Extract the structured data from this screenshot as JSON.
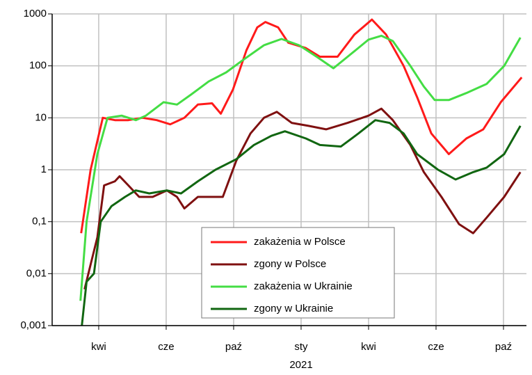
{
  "chart_data": {
    "type": "line",
    "log_y": true,
    "grid": true,
    "legend": "bottom-center",
    "ylim": [
      0.001,
      1000
    ],
    "yticks": [
      {
        "value": 0.001,
        "label": "0,001"
      },
      {
        "value": 0.01,
        "label": "0,01"
      },
      {
        "value": 0.1,
        "label": "0,1"
      },
      1,
      10,
      100,
      1000
    ],
    "xlim": [
      0.31,
      7.34
    ],
    "xticks": [
      {
        "value": 1,
        "label": "kwi"
      },
      {
        "value": 2,
        "label": "cze"
      },
      {
        "value": 3,
        "label": "paź"
      },
      {
        "value": 4,
        "label": "sty"
      },
      {
        "value": 5,
        "label": "kwi"
      },
      {
        "value": 6,
        "label": "cze"
      },
      {
        "value": 7,
        "label": "paź"
      }
    ],
    "x_label": "2021",
    "series": [
      {
        "name": "zakażenia w Polsce",
        "color": "#ff1a1a",
        "x": [
          0.74,
          0.88,
          1.06,
          1.24,
          1.44,
          1.65,
          1.86,
          2.06,
          2.27,
          2.47,
          2.68,
          2.81,
          2.99,
          3.19,
          3.35,
          3.47,
          3.66,
          3.81,
          4.07,
          4.28,
          4.54,
          4.79,
          5.05,
          5.26,
          5.52,
          5.72,
          5.93,
          6.19,
          6.45,
          6.7,
          6.96,
          7.27
        ],
        "values": [
          0.06,
          1,
          10,
          9,
          9,
          10,
          9,
          7.5,
          10,
          18,
          19,
          12,
          35,
          200,
          550,
          700,
          550,
          280,
          220,
          150,
          150,
          400,
          780,
          400,
          100,
          25,
          5,
          2,
          4,
          6,
          20,
          60
        ]
      },
      {
        "name": "zgony w Polsce",
        "color": "#7f1010",
        "x": [
          0.79,
          0.88,
          0.98,
          1.08,
          1.24,
          1.31,
          1.44,
          1.6,
          1.8,
          2.01,
          2.16,
          2.27,
          2.47,
          2.73,
          2.84,
          3.04,
          3.25,
          3.45,
          3.64,
          3.86,
          4.11,
          4.37,
          4.69,
          5.0,
          5.19,
          5.36,
          5.62,
          5.82,
          6.08,
          6.34,
          6.55,
          6.75,
          7.01,
          7.25
        ],
        "values": [
          0.005,
          0.015,
          0.05,
          0.5,
          0.6,
          0.75,
          0.5,
          0.3,
          0.3,
          0.4,
          0.3,
          0.18,
          0.3,
          0.3,
          0.3,
          1.5,
          5,
          10,
          13,
          8,
          7,
          6,
          8,
          11,
          15,
          9,
          3,
          0.9,
          0.3,
          0.09,
          0.06,
          0.12,
          0.3,
          0.9
        ]
      },
      {
        "name": "zakażenia w Ukrainie",
        "color": "#44dd44",
        "x": [
          0.73,
          0.82,
          0.98,
          1.13,
          1.34,
          1.55,
          1.7,
          1.96,
          2.16,
          2.37,
          2.63,
          2.89,
          3.14,
          3.45,
          3.71,
          3.97,
          4.23,
          4.48,
          4.69,
          5.0,
          5.19,
          5.36,
          5.62,
          5.82,
          5.98,
          6.19,
          6.45,
          6.75,
          7.01,
          7.25
        ],
        "values": [
          0.003,
          0.1,
          2,
          10,
          11,
          9,
          11,
          20,
          18,
          28,
          50,
          75,
          130,
          250,
          330,
          250,
          150,
          90,
          150,
          320,
          380,
          300,
          100,
          40,
          22,
          22,
          30,
          45,
          100,
          350
        ]
      },
      {
        "name": "zgony w Ukrainie",
        "color": "#116611",
        "x": [
          0.75,
          0.82,
          0.93,
          1.03,
          1.19,
          1.39,
          1.55,
          1.75,
          2.01,
          2.22,
          2.47,
          2.73,
          3.04,
          3.3,
          3.56,
          3.76,
          4.07,
          4.28,
          4.59,
          4.85,
          5.1,
          5.31,
          5.52,
          5.72,
          6.03,
          6.29,
          6.55,
          6.75,
          7.01,
          7.25
        ],
        "values": [
          0.001,
          0.007,
          0.01,
          0.1,
          0.2,
          0.3,
          0.4,
          0.35,
          0.4,
          0.35,
          0.6,
          1,
          1.6,
          3,
          4.5,
          5.5,
          4,
          3,
          2.8,
          5,
          9,
          8,
          5,
          2,
          1,
          0.65,
          0.9,
          1.1,
          2,
          7
        ]
      }
    ]
  }
}
